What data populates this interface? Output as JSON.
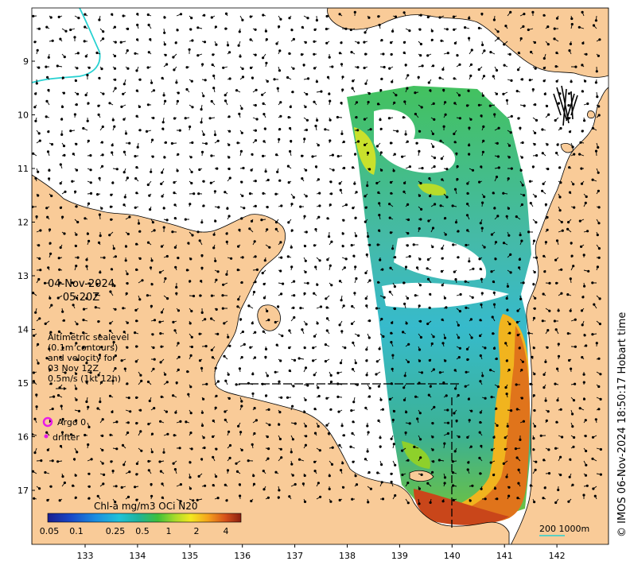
{
  "map": {
    "date": "04-Nov-2024",
    "time": "05:20Z",
    "legend_lines": [
      "Altimetric sealevel",
      "(0.1m contours)",
      "and velocity for",
      "03 Nov 12Z",
      "0.5m/s (1kt 12h)"
    ],
    "argo_label": "Argo 0",
    "drifter_label": "drifter",
    "colorbar_title": "Chl-a mg/m3 OCi N20",
    "colorbar_ticks": [
      "0.05",
      "0.1",
      "0.25",
      "0.5",
      "1",
      "2",
      "4"
    ],
    "scale_label": "200  1000m",
    "credit": "© IMOS 06-Nov-2024 18:50:17 Hobart time",
    "lat_ticks": [
      "9",
      "10",
      "11",
      "12",
      "13",
      "14",
      "15",
      "16",
      "17"
    ],
    "lon_ticks": [
      "133",
      "134",
      "135",
      "136",
      "137",
      "138",
      "139",
      "140",
      "141",
      "142"
    ],
    "colors": {
      "land": "#f9cb98",
      "ocean": "#ffffff",
      "argo": "#e81ce8",
      "isobath": "#27d1d1"
    }
  }
}
